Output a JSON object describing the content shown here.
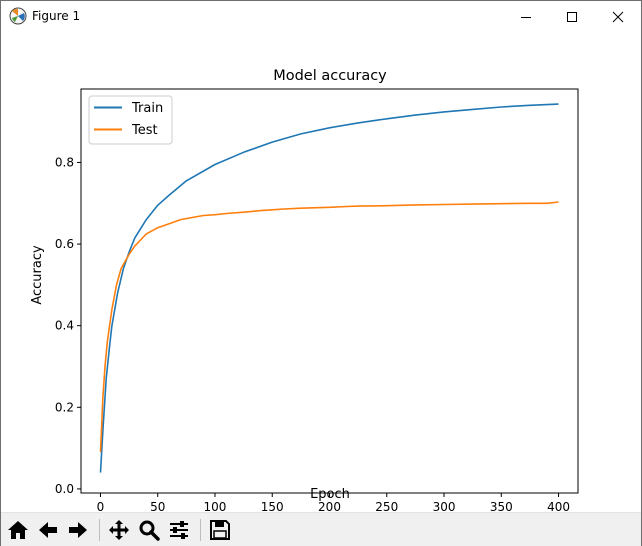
{
  "window": {
    "title": "Figure 1"
  },
  "toolbar": {
    "buttons": [
      {
        "name": "home-icon"
      },
      {
        "name": "back-arrow-icon"
      },
      {
        "name": "forward-arrow-icon"
      },
      {
        "name": "pan-icon"
      },
      {
        "name": "zoom-icon"
      },
      {
        "name": "configure-subplots-icon"
      },
      {
        "name": "save-icon"
      }
    ]
  },
  "colors": {
    "train": "#1f77b4",
    "test": "#ff7f0e"
  },
  "chart_data": {
    "type": "line",
    "title": "Model accuracy",
    "xlabel": "Epoch",
    "ylabel": "Accuracy",
    "xlim": [
      -17,
      417
    ],
    "ylim": [
      -0.01,
      0.98
    ],
    "xticks": [
      0,
      50,
      100,
      150,
      200,
      250,
      300,
      350,
      400
    ],
    "yticks": [
      0.0,
      0.2,
      0.4,
      0.6,
      0.8
    ],
    "xtick_labels": [
      "0",
      "50",
      "100",
      "150",
      "200",
      "250",
      "300",
      "350",
      "400"
    ],
    "ytick_labels": [
      "0.0",
      "0.2",
      "0.4",
      "0.6",
      "0.8"
    ],
    "grid": false,
    "legend": "top-left",
    "series": [
      {
        "name": "Train",
        "color": "#1f77b4",
        "x": [
          0,
          2,
          5,
          8,
          10,
          15,
          20,
          25,
          30,
          40,
          50,
          60,
          75,
          100,
          125,
          150,
          175,
          200,
          225,
          250,
          275,
          300,
          325,
          350,
          375,
          400
        ],
        "y": [
          0.04,
          0.14,
          0.27,
          0.35,
          0.4,
          0.48,
          0.54,
          0.58,
          0.615,
          0.66,
          0.695,
          0.72,
          0.755,
          0.795,
          0.825,
          0.85,
          0.87,
          0.885,
          0.897,
          0.907,
          0.916,
          0.924,
          0.93,
          0.936,
          0.94,
          0.943
        ]
      },
      {
        "name": "Test",
        "color": "#ff7f0e",
        "x": [
          0,
          2,
          4,
          6,
          8,
          10,
          12,
          14,
          16,
          18,
          20,
          25,
          30,
          35,
          40,
          50,
          60,
          70,
          80,
          90,
          100,
          110,
          125,
          140,
          150,
          160,
          175,
          200,
          215,
          225,
          250,
          275,
          300,
          325,
          350,
          375,
          390,
          400
        ],
        "y": [
          0.09,
          0.22,
          0.3,
          0.36,
          0.4,
          0.44,
          0.47,
          0.5,
          0.52,
          0.54,
          0.55,
          0.575,
          0.595,
          0.61,
          0.625,
          0.64,
          0.65,
          0.66,
          0.665,
          0.67,
          0.672,
          0.675,
          0.678,
          0.682,
          0.684,
          0.686,
          0.688,
          0.69,
          0.692,
          0.693,
          0.694,
          0.696,
          0.697,
          0.698,
          0.699,
          0.7,
          0.7,
          0.703
        ]
      }
    ]
  }
}
